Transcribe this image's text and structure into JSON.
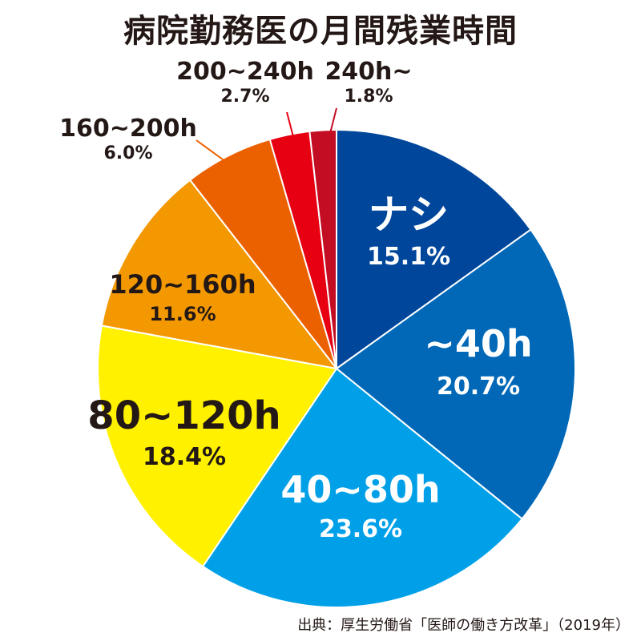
{
  "chart_data": {
    "type": "pie",
    "title": "病院勤務医の月間残業時間",
    "slices": [
      {
        "label": "ナシ",
        "value": 15.1,
        "display": "15.1%",
        "color": "#00469b"
      },
      {
        "label": "~40h",
        "value": 20.7,
        "display": "20.7%",
        "color": "#0068b7"
      },
      {
        "label": "40~80h",
        "value": 23.6,
        "display": "23.6%",
        "color": "#00a0e9"
      },
      {
        "label": "80~120h",
        "value": 18.4,
        "display": "18.4%",
        "color": "#fff100"
      },
      {
        "label": "120~160h",
        "value": 11.6,
        "display": "11.6%",
        "color": "#f39800"
      },
      {
        "label": "160~200h",
        "value": 6.0,
        "display": "6.0%",
        "color": "#eb6100"
      },
      {
        "label": "200~240h",
        "value": 2.7,
        "display": "2.7%",
        "color": "#e60012"
      },
      {
        "label": "240h~",
        "value": 1.8,
        "display": "1.8%",
        "color": "#c30d23"
      }
    ]
  },
  "source": "出典：厚生労働省「医師の働き方改革」（2019年）"
}
